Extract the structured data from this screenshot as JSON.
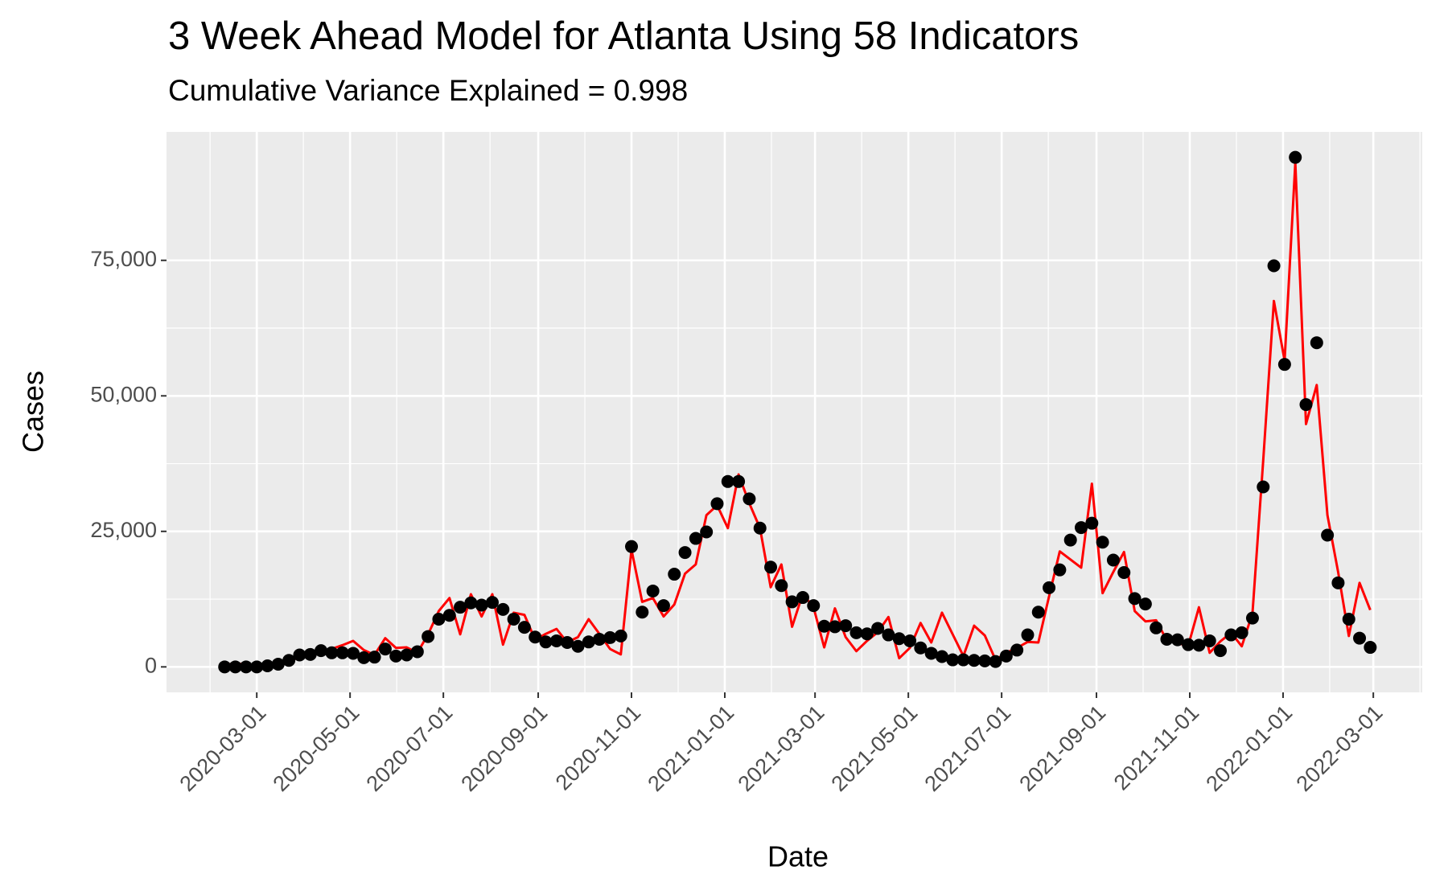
{
  "chart_data": {
    "type": "line",
    "title": "3 Week Ahead Model for Atlanta Using 58 Indicators",
    "subtitle": "Cumulative Variance Explained = 0.998",
    "x_label": "Date",
    "y_label": "Cases",
    "x": [
      "2020-02-09",
      "2020-02-16",
      "2020-02-23",
      "2020-03-01",
      "2020-03-08",
      "2020-03-15",
      "2020-03-22",
      "2020-03-29",
      "2020-04-05",
      "2020-04-12",
      "2020-04-19",
      "2020-04-26",
      "2020-05-03",
      "2020-05-10",
      "2020-05-17",
      "2020-05-24",
      "2020-05-31",
      "2020-06-07",
      "2020-06-14",
      "2020-06-21",
      "2020-06-28",
      "2020-07-05",
      "2020-07-12",
      "2020-07-19",
      "2020-07-26",
      "2020-08-02",
      "2020-08-09",
      "2020-08-16",
      "2020-08-23",
      "2020-08-30",
      "2020-09-06",
      "2020-09-13",
      "2020-09-20",
      "2020-09-27",
      "2020-10-04",
      "2020-10-11",
      "2020-10-18",
      "2020-10-25",
      "2020-11-01",
      "2020-11-08",
      "2020-11-15",
      "2020-11-22",
      "2020-11-29",
      "2020-12-06",
      "2020-12-13",
      "2020-12-20",
      "2020-12-27",
      "2021-01-03",
      "2021-01-10",
      "2021-01-17",
      "2021-01-24",
      "2021-01-31",
      "2021-02-07",
      "2021-02-14",
      "2021-02-21",
      "2021-02-28",
      "2021-03-07",
      "2021-03-14",
      "2021-03-21",
      "2021-03-28",
      "2021-04-04",
      "2021-04-11",
      "2021-04-18",
      "2021-04-25",
      "2021-05-02",
      "2021-05-09",
      "2021-05-16",
      "2021-05-23",
      "2021-05-30",
      "2021-06-06",
      "2021-06-13",
      "2021-06-20",
      "2021-06-27",
      "2021-07-04",
      "2021-07-11",
      "2021-07-18",
      "2021-07-25",
      "2021-08-01",
      "2021-08-08",
      "2021-08-15",
      "2021-08-22",
      "2021-08-29",
      "2021-09-05",
      "2021-09-12",
      "2021-09-19",
      "2021-09-26",
      "2021-10-03",
      "2021-10-10",
      "2021-10-17",
      "2021-10-24",
      "2021-10-31",
      "2021-11-07",
      "2021-11-14",
      "2021-11-21",
      "2021-11-28",
      "2021-12-05",
      "2021-12-12",
      "2021-12-19",
      "2021-12-26",
      "2022-01-02",
      "2022-01-09",
      "2022-01-16",
      "2022-01-23",
      "2022-01-30",
      "2022-02-06",
      "2022-02-13",
      "2022-02-20",
      "2022-02-27"
    ],
    "series": [
      {
        "type": "line",
        "color": "#ff0000",
        "values": [
          300,
          700,
          400,
          300,
          500,
          800,
          1500,
          1500,
          2700,
          3000,
          3300,
          4000,
          4800,
          3100,
          2200,
          5300,
          3500,
          3600,
          2600,
          6000,
          10300,
          12700,
          6000,
          13400,
          9300,
          13400,
          4100,
          10000,
          9600,
          5000,
          6100,
          7000,
          4500,
          5500,
          8800,
          6100,
          3300,
          2300,
          21600,
          12000,
          12700,
          9300,
          11500,
          17200,
          18900,
          28000,
          29800,
          25600,
          35500,
          30200,
          25600,
          14700,
          18900,
          7400,
          13500,
          11000,
          3600,
          10800,
          5500,
          2900,
          4800,
          6400,
          9200,
          1600,
          3500,
          8100,
          4500,
          10000,
          6000,
          2000,
          7600,
          5800,
          1300,
          2600,
          3500,
          4600,
          4500,
          13000,
          21300,
          19800,
          18300,
          33800,
          13600,
          17500,
          21200,
          10300,
          8400,
          8600,
          4900,
          4400,
          3900,
          11000,
          2600,
          4700,
          6300,
          3800,
          9900,
          38000,
          67500,
          56500,
          93000,
          44800,
          52000,
          28000,
          17500,
          5700,
          15500,
          10500
        ]
      },
      {
        "type": "scatter",
        "color": "#000000",
        "values": [
          0,
          0,
          0,
          0,
          200,
          500,
          1200,
          2200,
          2300,
          3000,
          2600,
          2600,
          2500,
          1700,
          1800,
          3300,
          2000,
          2200,
          2800,
          5600,
          8800,
          9500,
          11000,
          11800,
          11400,
          11900,
          10600,
          8800,
          7300,
          5500,
          4600,
          4800,
          4500,
          3800,
          4600,
          5100,
          5400,
          5700,
          22200,
          10100,
          14000,
          11300,
          17100,
          21100,
          23700,
          24900,
          30100,
          34200,
          34200,
          31000,
          25600,
          18400,
          15000,
          12000,
          12800,
          11300,
          7500,
          7400,
          7600,
          6300,
          6100,
          7100,
          5900,
          5200,
          4800,
          3500,
          2500,
          1900,
          1300,
          1300,
          1200,
          1100,
          1000,
          2000,
          3100,
          5900,
          10100,
          14600,
          17900,
          23400,
          25700,
          26500,
          23000,
          19700,
          17400,
          12600,
          11600,
          7200,
          5100,
          5000,
          4100,
          4000,
          4800,
          3000,
          5900,
          6300,
          9000,
          33200,
          74000,
          55800,
          94000,
          48400,
          59800,
          24300,
          15500,
          8800,
          5300,
          3600
        ]
      }
    ],
    "xlim": [
      "2020-01-02",
      "2022-04-02"
    ],
    "xticks": [
      "2020-03-01",
      "2020-05-01",
      "2020-07-01",
      "2020-09-01",
      "2020-11-01",
      "2021-01-01",
      "2021-03-01",
      "2021-05-01",
      "2021-07-01",
      "2021-09-01",
      "2021-11-01",
      "2022-01-01",
      "2022-03-01"
    ],
    "ylim": [
      -4700,
      98700
    ],
    "yticks": [
      0,
      {
        "value": 25000,
        "label": "25,000"
      },
      {
        "value": 50000,
        "label": "50,000"
      },
      {
        "value": 75000,
        "label": "75,000"
      }
    ],
    "grid": true
  }
}
